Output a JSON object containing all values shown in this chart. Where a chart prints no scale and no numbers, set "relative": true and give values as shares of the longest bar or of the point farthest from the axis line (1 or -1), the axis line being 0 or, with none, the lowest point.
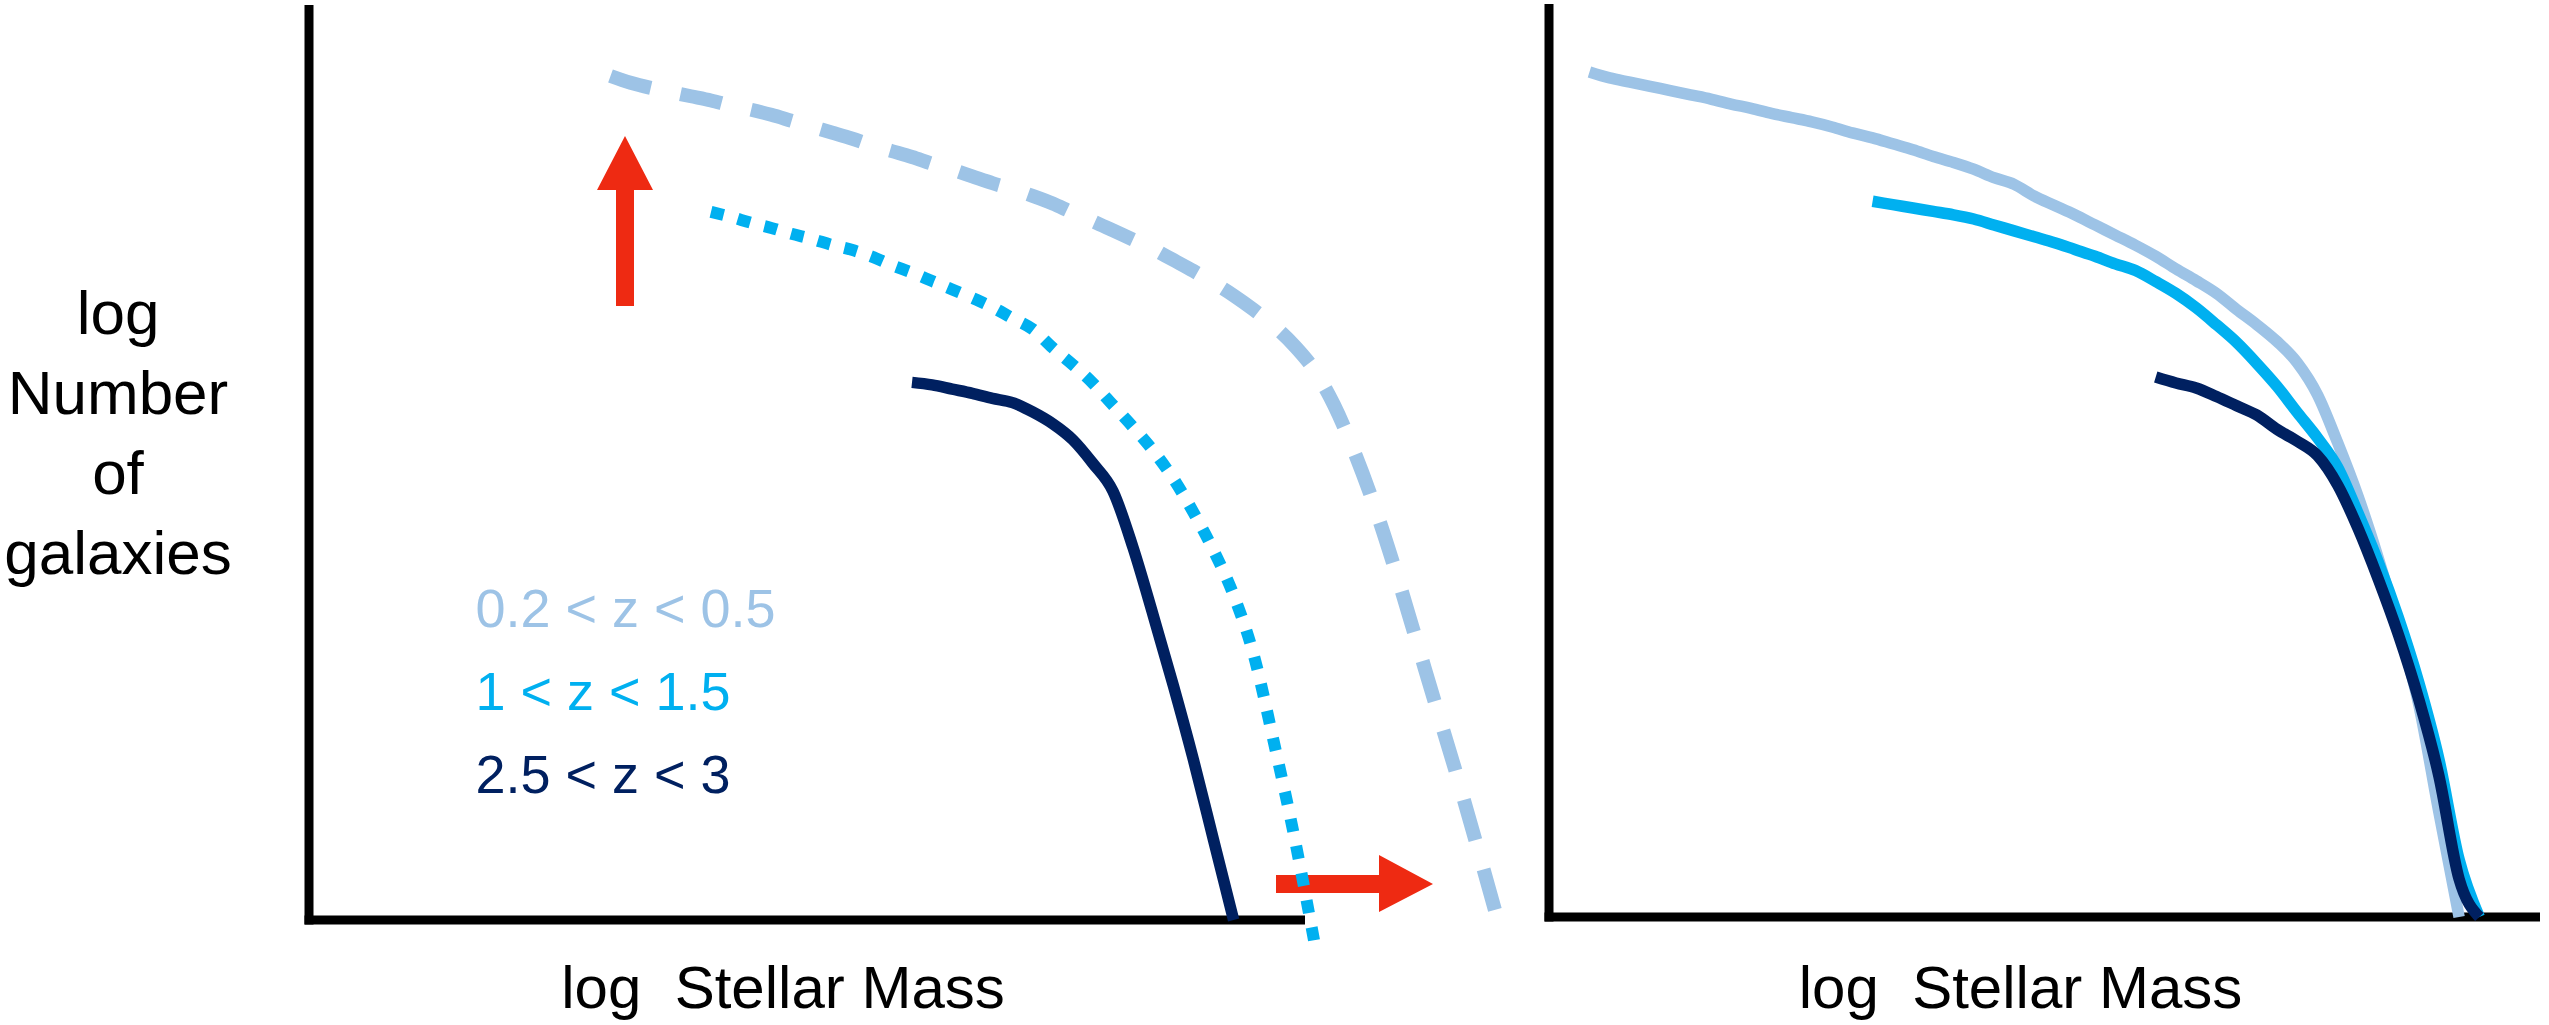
{
  "chart_data": [
    {
      "type": "line",
      "relative": true,
      "ylabel": "log Number of galaxies",
      "xlabel": "log  Stellar Mass",
      "legend": "bottom left",
      "categories": [
        null,
        null,
        null,
        null,
        null,
        null,
        null,
        null,
        null,
        null,
        null,
        null,
        null,
        null,
        null,
        null,
        null,
        null,
        null,
        null,
        null,
        null,
        null,
        null,
        null,
        null,
        null,
        null,
        null,
        null,
        null,
        null,
        null,
        null,
        null,
        null,
        null,
        null,
        null,
        null,
        null,
        null,
        null,
        null,
        null,
        null,
        null,
        null,
        null,
        null,
        null,
        null,
        null,
        null,
        null,
        null,
        null,
        null,
        null,
        null,
        null
      ],
      "series": [
        {
          "name": "0.2 < z < 0.5",
          "color": "#9dc3e6",
          "line_style": "dashed",
          "values": [
            null,
            null,
            null,
            null,
            null,
            null,
            null,
            null,
            null,
            null,
            null,
            null,
            null,
            null,
            null,
            1.0,
            0.992,
            0.986,
            0.981,
            0.976,
            0.971,
            0.965,
            0.96,
            0.954,
            0.947,
            0.94,
            0.933,
            0.926,
            0.918,
            0.911,
            0.904,
            0.896,
            0.889,
            0.881,
            0.873,
            0.866,
            0.858,
            0.849,
            0.838,
            0.828,
            0.817,
            0.806,
            0.795,
            0.782,
            0.769,
            0.755,
            0.74,
            0.723,
            0.704,
            0.681,
            0.652,
            0.61,
            0.555,
            0.491,
            0.418,
            0.339,
            0.259,
            0.18,
            0.097,
            0.012,
            null
          ]
        },
        {
          "name": "1 < z < 1.5",
          "color": "#00b0f0",
          "line_style": "dotted",
          "values": [
            null,
            null,
            null,
            null,
            null,
            null,
            null,
            null,
            null,
            null,
            null,
            null,
            null,
            null,
            null,
            null,
            null,
            null,
            null,
            null,
            0.839,
            0.833,
            0.826,
            0.82,
            0.813,
            0.807,
            0.8,
            0.794,
            0.786,
            0.776,
            0.767,
            0.757,
            0.747,
            0.737,
            0.726,
            0.713,
            0.7,
            0.678,
            0.658,
            0.636,
            0.61,
            0.584,
            0.556,
            0.523,
            0.483,
            0.438,
            0.385,
            0.314,
            0.211,
            0.101,
            -0.024,
            null,
            null,
            null,
            null,
            null,
            null,
            null,
            null,
            null,
            null
          ]
        },
        {
          "name": "2.5 < z < 3",
          "color": "#002060",
          "line_style": "solid",
          "values": [
            null,
            null,
            null,
            null,
            null,
            null,
            null,
            null,
            null,
            null,
            null,
            null,
            null,
            null,
            null,
            null,
            null,
            null,
            null,
            null,
            null,
            null,
            null,
            null,
            null,
            null,
            null,
            null,
            null,
            null,
            0.637,
            0.634,
            0.629,
            0.624,
            0.618,
            0.613,
            0.602,
            0.588,
            0.569,
            0.541,
            0.508,
            0.441,
            0.361,
            0.278,
            0.19,
            0.095,
            0.0,
            null,
            null,
            null,
            null,
            null,
            null,
            null,
            null,
            null,
            null,
            null,
            null,
            null,
            null
          ]
        }
      ]
    },
    {
      "type": "line",
      "relative": true,
      "xlabel": "log  Stellar Mass",
      "categories": [
        null,
        null,
        null,
        null,
        null,
        null,
        null,
        null,
        null,
        null,
        null,
        null,
        null,
        null,
        null,
        null,
        null,
        null,
        null,
        null,
        null,
        null,
        null,
        null,
        null,
        null,
        null,
        null,
        null,
        null,
        null,
        null,
        null,
        null,
        null,
        null,
        null,
        null,
        null,
        null,
        null,
        null,
        null,
        null,
        null,
        null,
        null,
        null,
        null,
        null
      ],
      "series": [
        {
          "color": "#9dc3e6",
          "values": [
            null,
            null,
            1.0,
            0.993,
            0.988,
            0.983,
            0.978,
            0.973,
            0.968,
            0.962,
            0.957,
            0.951,
            0.946,
            0.941,
            0.935,
            0.928,
            0.922,
            0.915,
            0.908,
            0.9,
            0.893,
            0.885,
            0.875,
            0.867,
            0.853,
            0.842,
            0.831,
            0.819,
            0.807,
            0.795,
            0.782,
            0.767,
            0.753,
            0.738,
            0.719,
            0.701,
            0.681,
            0.656,
            0.618,
            0.561,
            0.498,
            0.425,
            0.343,
            0.252,
            0.124,
            0.0,
            null,
            null,
            null,
            null
          ]
        },
        {
          "color": "#00b0f0",
          "values": [
            null,
            null,
            null,
            null,
            null,
            null,
            null,
            null,
            null,
            null,
            null,
            null,
            null,
            null,
            null,
            null,
            0.847,
            0.843,
            0.839,
            0.835,
            0.831,
            0.826,
            0.819,
            0.812,
            0.805,
            0.798,
            0.79,
            0.782,
            0.773,
            0.765,
            0.752,
            0.738,
            0.721,
            0.701,
            0.68,
            0.655,
            0.628,
            0.597,
            0.567,
            0.532,
            0.478,
            0.42,
            0.354,
            0.278,
            0.187,
            0.068,
            0.0,
            null,
            null,
            null
          ]
        },
        {
          "color": "#002060",
          "values": [
            null,
            null,
            null,
            null,
            null,
            null,
            null,
            null,
            null,
            null,
            null,
            null,
            null,
            null,
            null,
            null,
            null,
            null,
            null,
            null,
            null,
            null,
            null,
            null,
            null,
            null,
            null,
            null,
            null,
            null,
            0.639,
            0.632,
            0.626,
            0.616,
            0.605,
            0.594,
            0.577,
            0.563,
            0.546,
            0.511,
            0.46,
            0.4,
            0.334,
            0.258,
            0.167,
            0.045,
            0.0,
            null,
            null,
            null
          ]
        }
      ]
    }
  ]
}
